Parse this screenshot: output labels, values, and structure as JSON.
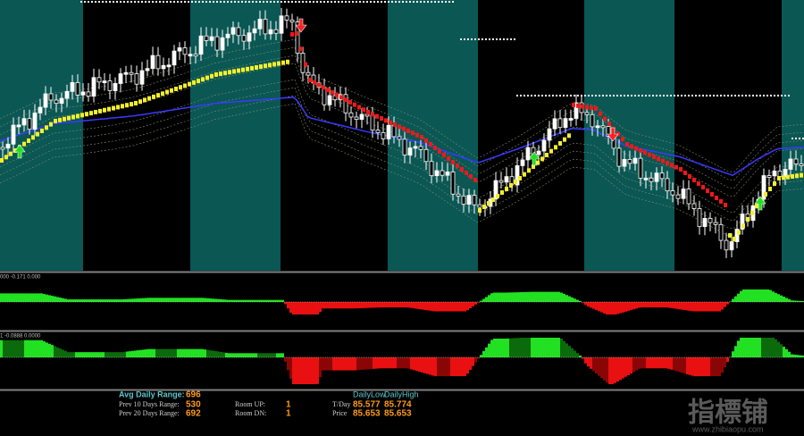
{
  "indicators": {
    "sub1_header": "000 -0.171 0.000",
    "sub2_header": "1 -0.0888 0.0000"
  },
  "info_panel": {
    "avg_daily_range_label": "Avg Daily Range:",
    "avg_daily_range": "696",
    "prev10_label": "Prev 10 Days Range:",
    "prev10": "530",
    "prev20_label": "Prev 20 Days Range:",
    "prev20": "692",
    "room_up_label": "Room UP:",
    "room_up": "1",
    "room_dn_label": "Room DN:",
    "room_dn": "1",
    "daily_low_label": "DailyLow",
    "daily_high_label": "DailyHigh",
    "tday_label": "T/Day",
    "tday_low": "85.577",
    "tday_high": "85.774",
    "price_label": "Price",
    "price_low": "85.653",
    "price_high": "85.653"
  },
  "watermark": {
    "brand": "指標铺",
    "url": "www.zhibiaopu.com"
  }
}
